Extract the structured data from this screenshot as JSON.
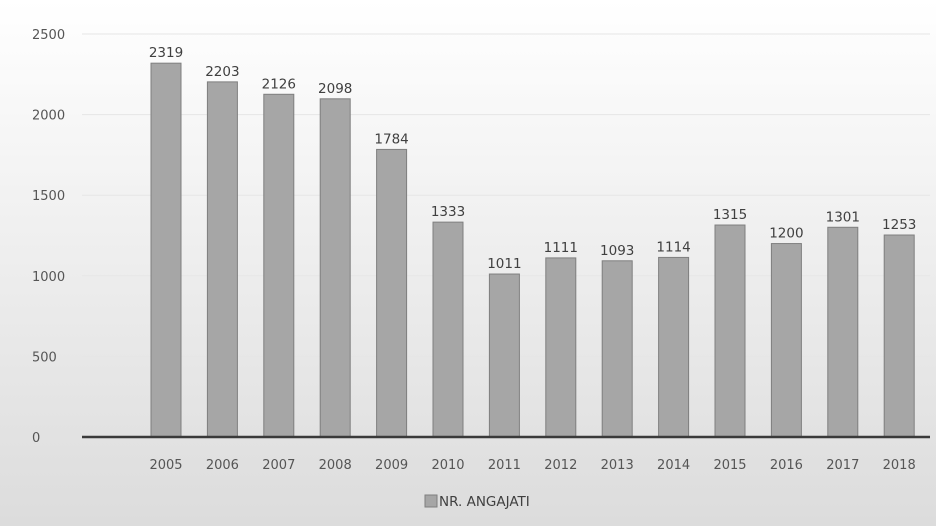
{
  "chart_data": {
    "type": "bar",
    "categories": [
      "2005",
      "2006",
      "2007",
      "2008",
      "2009",
      "2010",
      "2011",
      "2012",
      "2013",
      "2014",
      "2015",
      "2016",
      "2017",
      "2018"
    ],
    "series": [
      {
        "name": "NR. ANGAJATI",
        "values": [
          2319,
          2203,
          2126,
          2098,
          1784,
          1333,
          1011,
          1111,
          1093,
          1114,
          1315,
          1200,
          1301,
          1253
        ]
      }
    ],
    "ylim": [
      0,
      2500
    ],
    "yticks": [
      0,
      500,
      1000,
      1500,
      2000,
      2500
    ],
    "grid": true,
    "legend_position": "bottom",
    "data_labels": true,
    "colors": {
      "bar_fill": "#a6a6a6",
      "bar_stroke": "#7f7f7f",
      "plot_bg_top": "#ffffff",
      "plot_bg_bottom": "#dcdcdc",
      "axis": "#3a3a3a",
      "grid": "#e6e6e6"
    }
  }
}
